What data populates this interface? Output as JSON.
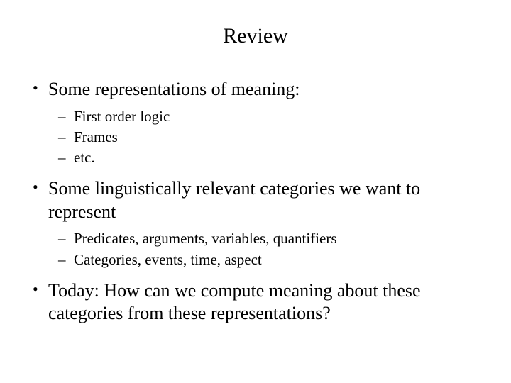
{
  "title": "Review",
  "bullets": [
    {
      "text": "Some representations of meaning:",
      "sub": [
        "First order logic",
        "Frames",
        "etc."
      ]
    },
    {
      "text": "Some linguistically relevant categories we want to represent",
      "sub": [
        "Predicates, arguments, variables, quantifiers",
        "Categories, events, time, aspect"
      ]
    },
    {
      "text": "Today:  How can we compute meaning about these categories from these representations?",
      "sub": []
    }
  ],
  "style": {
    "background_color": "#ffffff",
    "text_color": "#000000",
    "font_family": "Times New Roman",
    "title_fontsize": 30,
    "bullet_fontsize": 26,
    "subbullet_fontsize": 21
  }
}
